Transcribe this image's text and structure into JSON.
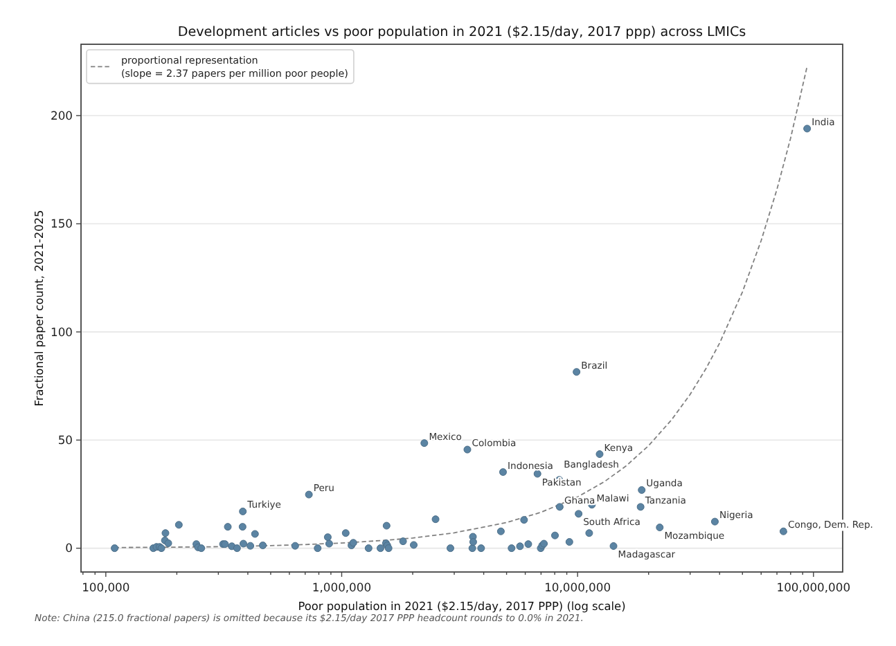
{
  "chart_data": {
    "type": "scatter",
    "title": "Development articles vs poor population in 2021 ($2.15/day, 2017 ppp) across LMICs",
    "xlabel": "Poor population in 2021 ($2.15/day, 2017 PPP) (log scale)",
    "ylabel": "Fractional paper count, 2021-2025",
    "log": "x",
    "xlim": [
      78500,
      133000000
    ],
    "ylim": [
      -11,
      233
    ],
    "xticks": [
      {
        "value": 80000,
        "label": null
      },
      {
        "value": 90000,
        "label": null
      },
      {
        "value": 100000,
        "label": "100,000"
      },
      {
        "value": 200000,
        "label": null
      },
      {
        "value": 300000,
        "label": null
      },
      {
        "value": 400000,
        "label": null
      },
      {
        "value": 500000,
        "label": null
      },
      {
        "value": 600000,
        "label": null
      },
      {
        "value": 700000,
        "label": null
      },
      {
        "value": 800000,
        "label": null
      },
      {
        "value": 900000,
        "label": null
      },
      {
        "value": 1000000,
        "label": "1,000,000"
      },
      {
        "value": 2000000,
        "label": null
      },
      {
        "value": 3000000,
        "label": null
      },
      {
        "value": 4000000,
        "label": null
      },
      {
        "value": 5000000,
        "label": null
      },
      {
        "value": 6000000,
        "label": null
      },
      {
        "value": 7000000,
        "label": null
      },
      {
        "value": 8000000,
        "label": null
      },
      {
        "value": 9000000,
        "label": null
      },
      {
        "value": 10000000,
        "label": "10,000,000"
      },
      {
        "value": 20000000,
        "label": null
      },
      {
        "value": 30000000,
        "label": null
      },
      {
        "value": 40000000,
        "label": null
      },
      {
        "value": 50000000,
        "label": null
      },
      {
        "value": 60000000,
        "label": null
      },
      {
        "value": 70000000,
        "label": null
      },
      {
        "value": 80000000,
        "label": null
      },
      {
        "value": 90000000,
        "label": null
      },
      {
        "value": 100000000,
        "label": "100,000,000"
      }
    ],
    "yticks": [
      0,
      50,
      100,
      150,
      200
    ],
    "grid": "y",
    "legend": "top left",
    "series": [
      {
        "color": "#5b84a3",
        "marker": "circle",
        "x": [
          109000,
          159000,
          164000,
          169000,
          172000,
          178000,
          179000,
          184000,
          204000,
          242000,
          246000,
          254000,
          314000,
          320000,
          329000,
          342000,
          360000,
          380000,
          381000,
          383000,
          410000,
          429000,
          463000,
          635000,
          726000,
          791000,
          873000,
          885000,
          1040000,
          1100000,
          1120000,
          1300000,
          1460000,
          1540000,
          1550000,
          1560000,
          1580000,
          1820000,
          2020000,
          2240000,
          2500000,
          2890000,
          3410000,
          3580000,
          3600000,
          3610000,
          3900000,
          4730000,
          4830000,
          5250000,
          5700000,
          5930000,
          6180000,
          6760000,
          6980000,
          7080000,
          7200000,
          8020000,
          8360000,
          8400000,
          9230000,
          9900000,
          10100000,
          11200000,
          11500000,
          12400000,
          14200000,
          18500000,
          18700000,
          22300000,
          38200000,
          74600000,
          94000000
        ],
        "values": [
          0,
          0,
          0.6,
          0.6,
          0,
          3.6,
          7.0,
          2.3,
          10.8,
          1.9,
          0.4,
          0,
          1.9,
          1.9,
          9.9,
          0.9,
          0,
          9.9,
          17.0,
          2.1,
          1.1,
          6.6,
          1.3,
          1.1,
          24.8,
          0,
          5.1,
          2.1,
          7.0,
          1.3,
          2.5,
          0,
          0,
          2.3,
          10.4,
          1.3,
          0,
          3.2,
          1.5,
          48.6,
          13.4,
          0,
          45.6,
          0,
          5.3,
          2.9,
          0,
          7.8,
          35.2,
          0,
          0.9,
          13.1,
          1.9,
          34.4,
          0,
          1.3,
          2.1,
          5.9,
          31.6,
          19.1,
          2.9,
          81.5,
          15.9,
          7.0,
          20.1,
          43.5,
          1.0,
          19.1,
          26.9,
          9.6,
          12.3,
          7.8,
          194
        ]
      },
      {
        "type": "line",
        "name": "proportional representation\n(slope = 2.37 papers per million poor people)",
        "color": "#808080",
        "line_style": "dashed",
        "marker": "none",
        "x": [
          109000,
          200000,
          300000,
          500000,
          700000,
          1000000,
          1500000,
          2000000,
          3000000,
          5000000,
          7000000,
          10000000,
          13000000,
          16000000,
          20000000,
          25000000,
          30000000,
          35000000,
          40000000,
          50000000,
          60000000,
          70000000,
          80000000,
          94000000
        ],
        "values": [
          0.3,
          0.5,
          0.7,
          1.2,
          1.7,
          2.4,
          3.6,
          4.7,
          7.1,
          11.9,
          16.6,
          23.7,
          30.8,
          37.9,
          47.4,
          59.3,
          71.1,
          83.0,
          94.8,
          118.5,
          142.2,
          165.9,
          189.6,
          222.8
        ]
      }
    ],
    "annotations": [
      {
        "text": "India",
        "x": 94000000,
        "y": 194
      },
      {
        "text": "Brazil",
        "x": 9900000,
        "y": 81.5
      },
      {
        "text": "Mexico",
        "x": 2240000,
        "y": 48.6
      },
      {
        "text": "Colombia",
        "x": 3410000,
        "y": 45.6
      },
      {
        "text": "Kenya",
        "x": 12400000,
        "y": 43.5
      },
      {
        "text": "Indonesia",
        "x": 4830000,
        "y": 35.2
      },
      {
        "text": "Pakistan",
        "x": 6760000,
        "y": 34.4
      },
      {
        "text": "Bangladesh",
        "x": 8360000,
        "y": 31.6
      },
      {
        "text": "Uganda",
        "x": 18700000,
        "y": 26.9
      },
      {
        "text": "Peru",
        "x": 726000,
        "y": 24.8
      },
      {
        "text": "Ghana",
        "x": 8400000,
        "y": 19.1
      },
      {
        "text": "Malawi",
        "x": 11500000,
        "y": 20.1
      },
      {
        "text": "Tanzania",
        "x": 18500000,
        "y": 19.1
      },
      {
        "text": "Turkiye",
        "x": 381000,
        "y": 17.0
      },
      {
        "text": "South Africa",
        "x": 10100000,
        "y": 15.9
      },
      {
        "text": "Nigeria",
        "x": 38200000,
        "y": 12.3
      },
      {
        "text": "Mozambique",
        "x": 22300000,
        "y": 9.6
      },
      {
        "text": "Congo, Dem. Rep.",
        "x": 74600000,
        "y": 7.8
      },
      {
        "text": "Madagascar",
        "x": 14200000,
        "y": 1.0
      },
      "Note: China (215.0 fractional papers) is omitted because its $2.15/day 2017 PPP headcount rounds to 0.0% in 2021."
    ]
  }
}
